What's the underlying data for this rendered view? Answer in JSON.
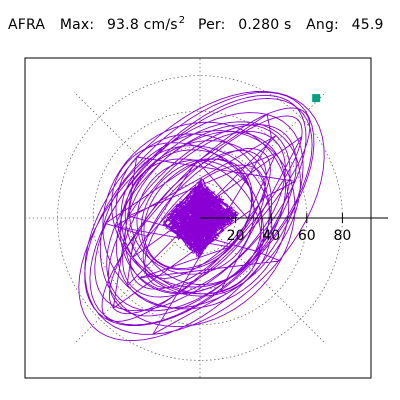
{
  "header": {
    "station": "AFRA",
    "max_label": "Max:",
    "max_value": "93.8",
    "max_unit": "cm/s",
    "max_unit_power": "2",
    "per_label": "Per:",
    "per_value": "0.280",
    "per_unit": "s",
    "ang_label": "Ang:",
    "ang_value": "45.9"
  },
  "chart_data": {
    "type": "polar",
    "radial_ticks": [
      20,
      40,
      60,
      80
    ],
    "radial_tick_labels": [
      "20",
      "40",
      "60",
      "80"
    ],
    "rmax": 100,
    "grid": true,
    "grid_style": "dotted",
    "trace_color": "#8a00d4",
    "peak_marker_color": "#00a080",
    "peak_marker": {
      "value": 93.8,
      "angle_deg": 45.9
    },
    "trace_extent": {
      "major_axis_angle_deg": 45.9,
      "major_amplitude": 93.8,
      "minor_amplitude": 55
    }
  }
}
